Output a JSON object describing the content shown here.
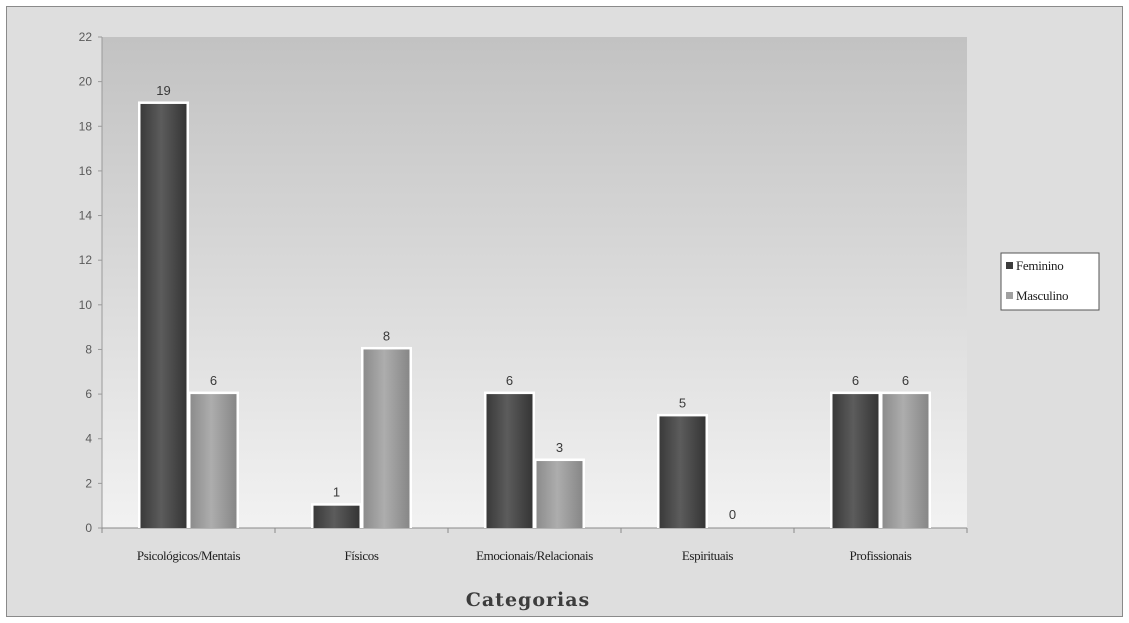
{
  "chart_data": {
    "type": "bar",
    "title": "",
    "xlabel": "Categorias",
    "ylabel": "",
    "ylim": [
      0,
      22
    ],
    "yticks": [
      0,
      2,
      4,
      6,
      8,
      10,
      12,
      14,
      16,
      18,
      20,
      22
    ],
    "categories": [
      "Psicológicos/Mentais",
      "Físicos",
      "Emocionais/Relacionais",
      "Espirituais",
      "Profissionais"
    ],
    "series": [
      {
        "name": "Feminino",
        "values": [
          19,
          1,
          6,
          5,
          6
        ],
        "color": "#4a4a4a"
      },
      {
        "name": "Masculino",
        "values": [
          6,
          8,
          3,
          0,
          6
        ],
        "color": "#9a9a9a"
      }
    ],
    "data_labels": true,
    "grid": false,
    "legend_position": "right"
  }
}
